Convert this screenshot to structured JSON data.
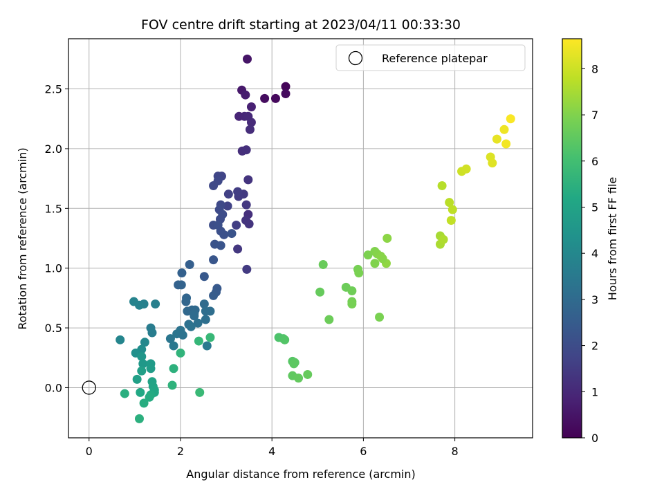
{
  "chart_data": {
    "type": "scatter",
    "title": "FOV centre drift starting at 2023/04/11 00:33:30",
    "xlabel": "Angular distance from reference (arcmin)",
    "ylabel": "Rotation from reference (arcmin)",
    "xlim": [
      -0.45,
      9.7
    ],
    "ylim": [
      -0.42,
      2.92
    ],
    "xticks": [
      0,
      2,
      4,
      6,
      8
    ],
    "xtick_labels": [
      "0",
      "2",
      "4",
      "6",
      "8"
    ],
    "yticks": [
      0.0,
      0.5,
      1.0,
      1.5,
      2.0,
      2.5
    ],
    "ytick_labels": [
      "0.0",
      "0.5",
      "1.0",
      "1.5",
      "2.0",
      "2.5"
    ],
    "grid": true,
    "legend": {
      "placement": "top-right",
      "entries": [
        "Reference platepar"
      ]
    },
    "reference_point": {
      "name": "Reference platepar",
      "x": 0,
      "y": 0
    },
    "colorbar": {
      "label": "Hours from first FF file",
      "colormap": "viridis",
      "range": [
        0,
        8.65
      ],
      "ticks": [
        0,
        1,
        2,
        3,
        4,
        5,
        6,
        7,
        8
      ],
      "tick_labels": [
        "0",
        "1",
        "2",
        "3",
        "4",
        "5",
        "6",
        "7",
        "8"
      ]
    },
    "points": [
      [
        4.3,
        2.52,
        0.1
      ],
      [
        4.08,
        2.42,
        0.2
      ],
      [
        3.84,
        2.42,
        0.3
      ],
      [
        4.3,
        2.46,
        0.25
      ],
      [
        3.46,
        2.75,
        0.5
      ],
      [
        3.34,
        2.49,
        0.6
      ],
      [
        3.42,
        2.45,
        0.7
      ],
      [
        3.55,
        2.35,
        0.8
      ],
      [
        3.28,
        2.27,
        0.9
      ],
      [
        3.4,
        2.27,
        0.95
      ],
      [
        3.48,
        2.27,
        1.0
      ],
      [
        3.55,
        2.22,
        1.05
      ],
      [
        3.52,
        2.16,
        1.1
      ],
      [
        3.35,
        1.98,
        1.15
      ],
      [
        3.44,
        1.99,
        1.2
      ],
      [
        3.48,
        1.74,
        1.3
      ],
      [
        3.48,
        1.45,
        1.2
      ],
      [
        3.5,
        1.37,
        1.3
      ],
      [
        3.44,
        1.53,
        1.4
      ],
      [
        3.43,
        1.4,
        1.3
      ],
      [
        3.38,
        1.62,
        1.45
      ],
      [
        3.27,
        1.6,
        1.5
      ],
      [
        3.25,
        1.64,
        1.55
      ],
      [
        3.22,
        1.36,
        1.6
      ],
      [
        3.25,
        1.16,
        1.4
      ],
      [
        3.45,
        0.99,
        1.5
      ],
      [
        3.05,
        1.62,
        1.65
      ],
      [
        3.03,
        1.52,
        1.7
      ],
      [
        2.9,
        1.77,
        1.75
      ],
      [
        2.82,
        1.77,
        1.8
      ],
      [
        2.82,
        1.73,
        1.85
      ],
      [
        2.72,
        1.69,
        1.9
      ],
      [
        2.88,
        1.53,
        1.9
      ],
      [
        2.85,
        1.49,
        1.95
      ],
      [
        2.92,
        1.45,
        2.0
      ],
      [
        2.87,
        1.41,
        2.0
      ],
      [
        2.72,
        1.36,
        2.05
      ],
      [
        2.82,
        1.36,
        2.1
      ],
      [
        2.88,
        1.31,
        2.1
      ],
      [
        2.95,
        1.28,
        2.15
      ],
      [
        3.12,
        1.29,
        2.2
      ],
      [
        2.75,
        1.2,
        2.2
      ],
      [
        2.88,
        1.19,
        2.25
      ],
      [
        2.72,
        1.07,
        2.3
      ],
      [
        2.8,
        0.83,
        2.4
      ],
      [
        2.78,
        0.8,
        2.45
      ],
      [
        2.72,
        0.77,
        2.5
      ],
      [
        2.52,
        0.93,
        2.4
      ],
      [
        2.2,
        1.03,
        2.6
      ],
      [
        2.03,
        0.96,
        2.65
      ],
      [
        1.95,
        0.86,
        2.7
      ],
      [
        2.02,
        0.86,
        2.75
      ],
      [
        2.13,
        0.75,
        2.8
      ],
      [
        2.12,
        0.72,
        2.85
      ],
      [
        2.15,
        0.64,
        2.9
      ],
      [
        2.25,
        0.65,
        2.9
      ],
      [
        2.32,
        0.65,
        2.95
      ],
      [
        2.3,
        0.62,
        3.0
      ],
      [
        2.3,
        0.6,
        3.05
      ],
      [
        2.52,
        0.7,
        3.0
      ],
      [
        2.65,
        0.64,
        3.1
      ],
      [
        2.55,
        0.64,
        3.1
      ],
      [
        2.55,
        0.57,
        3.15
      ],
      [
        2.38,
        0.54,
        3.2
      ],
      [
        2.18,
        0.53,
        3.2
      ],
      [
        2.23,
        0.51,
        3.25
      ],
      [
        2.0,
        0.48,
        3.3
      ],
      [
        1.92,
        0.45,
        3.35
      ],
      [
        2.05,
        0.44,
        3.3
      ],
      [
        1.78,
        0.41,
        3.4
      ],
      [
        1.85,
        0.35,
        3.45
      ],
      [
        2.58,
        0.35,
        3.5
      ],
      [
        1.35,
        0.5,
        3.6
      ],
      [
        1.38,
        0.46,
        3.65
      ],
      [
        1.45,
        0.7,
        3.7
      ],
      [
        1.2,
        0.7,
        3.75
      ],
      [
        1.1,
        0.69,
        3.8
      ],
      [
        0.98,
        0.72,
        3.85
      ],
      [
        0.68,
        0.4,
        3.9
      ],
      [
        1.22,
        0.38,
        4.0
      ],
      [
        1.15,
        0.32,
        4.2
      ],
      [
        1.02,
        0.29,
        4.3
      ],
      [
        1.15,
        0.26,
        4.5
      ],
      [
        1.18,
        0.2,
        4.6
      ],
      [
        1.35,
        0.2,
        4.7
      ],
      [
        1.35,
        0.16,
        4.75
      ],
      [
        1.15,
        0.14,
        4.85
      ],
      [
        1.05,
        0.07,
        4.9
      ],
      [
        1.38,
        0.05,
        5.0
      ],
      [
        1.4,
        0.01,
        5.05
      ],
      [
        1.43,
        -0.02,
        5.1
      ],
      [
        1.43,
        -0.04,
        5.15
      ],
      [
        1.12,
        -0.04,
        5.2
      ],
      [
        1.35,
        -0.06,
        5.25
      ],
      [
        1.32,
        -0.08,
        5.3
      ],
      [
        1.2,
        -0.13,
        5.35
      ],
      [
        0.78,
        -0.05,
        5.4
      ],
      [
        1.1,
        -0.26,
        5.45
      ],
      [
        1.85,
        0.16,
        5.5
      ],
      [
        1.82,
        0.02,
        5.55
      ],
      [
        2.0,
        0.29,
        5.6
      ],
      [
        2.4,
        0.39,
        5.7
      ],
      [
        2.65,
        0.42,
        5.75
      ],
      [
        2.42,
        -0.04,
        5.8
      ],
      [
        4.15,
        0.42,
        6.2
      ],
      [
        4.25,
        0.41,
        6.25
      ],
      [
        4.28,
        0.4,
        6.3
      ],
      [
        4.45,
        0.22,
        6.35
      ],
      [
        4.5,
        0.21,
        6.4
      ],
      [
        4.48,
        0.2,
        6.45
      ],
      [
        4.45,
        0.1,
        6.5
      ],
      [
        4.58,
        0.08,
        6.55
      ],
      [
        4.78,
        0.11,
        6.6
      ],
      [
        5.05,
        0.8,
        6.6
      ],
      [
        5.12,
        1.03,
        6.65
      ],
      [
        5.25,
        0.57,
        6.7
      ],
      [
        5.62,
        0.84,
        6.7
      ],
      [
        5.75,
        0.81,
        6.75
      ],
      [
        5.75,
        0.72,
        6.8
      ],
      [
        5.75,
        0.7,
        6.85
      ],
      [
        5.88,
        0.99,
        6.85
      ],
      [
        5.9,
        0.96,
        6.9
      ],
      [
        6.1,
        1.11,
        6.95
      ],
      [
        6.25,
        1.14,
        7.0
      ],
      [
        6.3,
        1.12,
        7.05
      ],
      [
        6.38,
        1.1,
        7.1
      ],
      [
        6.25,
        1.04,
        7.0
      ],
      [
        6.35,
        0.59,
        6.9
      ],
      [
        6.52,
        1.25,
        7.15
      ],
      [
        6.5,
        1.04,
        7.2
      ],
      [
        6.42,
        1.08,
        7.1
      ],
      [
        7.68,
        1.27,
        7.5
      ],
      [
        7.68,
        1.2,
        7.55
      ],
      [
        7.75,
        1.24,
        7.6
      ],
      [
        7.72,
        1.69,
        7.7
      ],
      [
        7.88,
        1.55,
        7.75
      ],
      [
        7.95,
        1.49,
        7.8
      ],
      [
        7.92,
        1.4,
        7.85
      ],
      [
        8.15,
        1.81,
        8.0
      ],
      [
        8.25,
        1.83,
        8.05
      ],
      [
        8.78,
        1.93,
        8.2
      ],
      [
        8.82,
        1.88,
        8.25
      ],
      [
        8.92,
        2.08,
        8.35
      ],
      [
        9.08,
        2.16,
        8.45
      ],
      [
        9.12,
        2.04,
        8.5
      ],
      [
        9.22,
        2.25,
        8.6
      ]
    ]
  }
}
